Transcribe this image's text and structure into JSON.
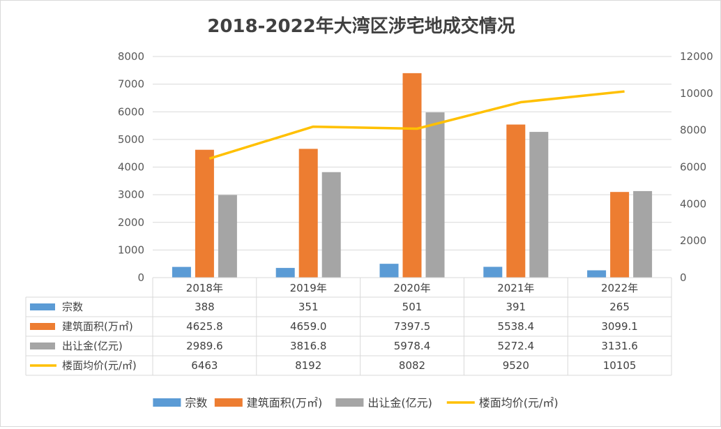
{
  "chart_data": {
    "type": "bar",
    "title": "2018-2022年大湾区涉宅地成交情况",
    "categories": [
      "2018年",
      "2019年",
      "2020年",
      "2021年",
      "2022年"
    ],
    "y_left": {
      "min": 0,
      "max": 8000,
      "step": 1000
    },
    "y_right": {
      "min": 0,
      "max": 12000,
      "step": 2000
    },
    "grid": true,
    "legend_position": "bottom",
    "series": [
      {
        "name": "宗数",
        "type": "bar",
        "axis": "left",
        "color": "#5b9bd5",
        "values": [
          388,
          351,
          501,
          391,
          265
        ],
        "labels": [
          "388",
          "351",
          "501",
          "391",
          "265"
        ]
      },
      {
        "name": "建筑面积(万㎡)",
        "type": "bar",
        "axis": "left",
        "color": "#ed7d31",
        "values": [
          4625.8,
          4659.0,
          7397.5,
          5538.4,
          3099.1
        ],
        "labels": [
          "4625.8",
          "4659.0",
          "7397.5",
          "5538.4",
          "3099.1"
        ]
      },
      {
        "name": "出让金(亿元)",
        "type": "bar",
        "axis": "left",
        "color": "#a5a5a5",
        "values": [
          2989.6,
          3816.8,
          5978.4,
          5272.4,
          3131.6
        ],
        "labels": [
          "2989.6",
          "3816.8",
          "5978.4",
          "5272.4",
          "3131.6"
        ]
      },
      {
        "name": "楼面均价(元/㎡)",
        "type": "line",
        "axis": "right",
        "color": "#ffc000",
        "values": [
          6463,
          8192,
          8082,
          9520,
          10105
        ],
        "labels": [
          "6463",
          "8192",
          "8082",
          "9520",
          "10105"
        ]
      }
    ]
  }
}
